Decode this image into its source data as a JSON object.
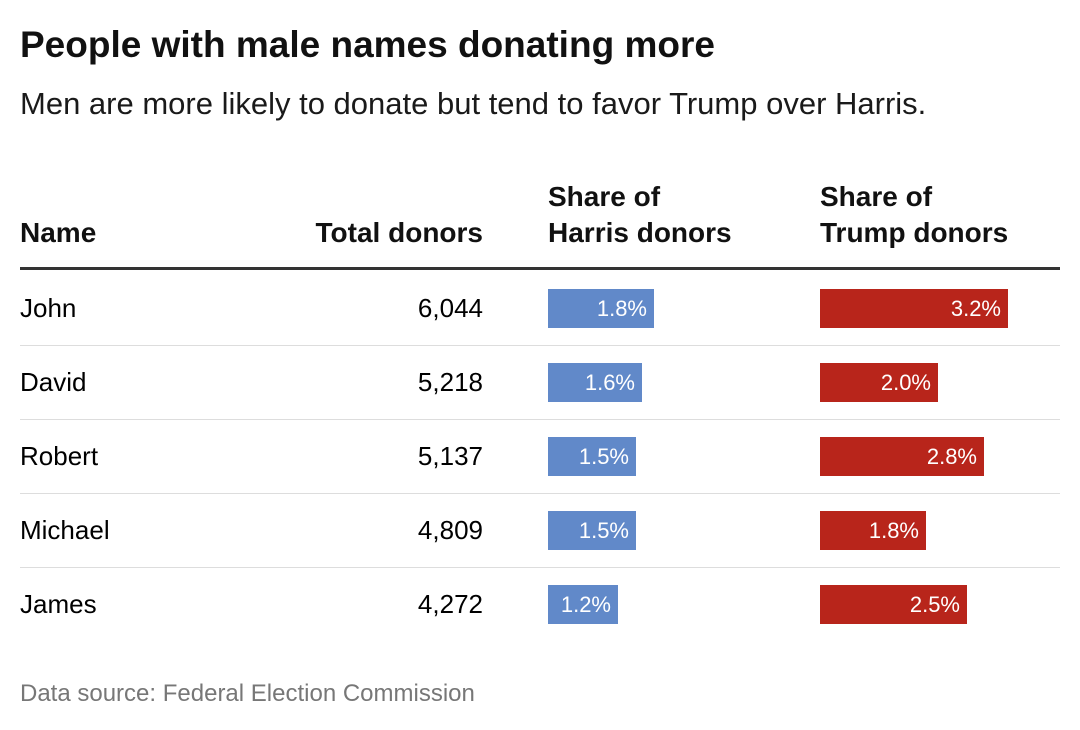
{
  "title": "People with male names donating more",
  "subtitle": "Men are more likely to donate but tend to favor Trump over Harris.",
  "headers": {
    "name": "Name",
    "total": "Total donors",
    "harris_line1": "Share of",
    "harris_line2": "Harris donors",
    "trump_line1": "Share of",
    "trump_line2": "Trump donors"
  },
  "colors": {
    "harris": "#6189c9",
    "trump": "#b8251b"
  },
  "source": "Data source: Federal Election Commission",
  "chart_data": {
    "type": "table",
    "title": "People with male names donating more",
    "subtitle": "Men are more likely to donate but tend to favor Trump over Harris.",
    "columns": [
      "Name",
      "Total donors",
      "Share of Harris donors",
      "Share of Trump donors"
    ],
    "rows": [
      {
        "name": "John",
        "total": "6,044",
        "harris": 1.8,
        "harris_label": "1.8%",
        "trump": 3.2,
        "trump_label": "3.2%"
      },
      {
        "name": "David",
        "total": "5,218",
        "harris": 1.6,
        "harris_label": "1.6%",
        "trump": 2.0,
        "trump_label": "2.0%"
      },
      {
        "name": "Robert",
        "total": "5,137",
        "harris": 1.5,
        "harris_label": "1.5%",
        "trump": 2.8,
        "trump_label": "2.8%"
      },
      {
        "name": "Michael",
        "total": "4,809",
        "harris": 1.5,
        "harris_label": "1.5%",
        "trump": 1.8,
        "trump_label": "1.8%"
      },
      {
        "name": "James",
        "total": "4,272",
        "harris": 1.2,
        "harris_label": "1.2%",
        "trump": 2.5,
        "trump_label": "2.5%"
      }
    ],
    "bar_scale_max": 3.2
  }
}
